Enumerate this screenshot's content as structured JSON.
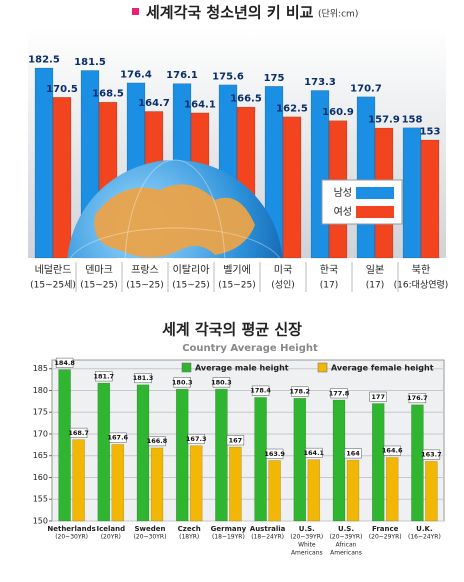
{
  "chart_data": [
    {
      "type": "bar",
      "title": "세계각국 청소년의 키 비교",
      "unit": "(단위:cm)",
      "categories": [
        [
          "네덜란드",
          "(15~25세)"
        ],
        [
          "덴마크",
          "(15~25)"
        ],
        [
          "프랑스",
          "(15~25)"
        ],
        [
          "이탈리아",
          "(15~25)"
        ],
        [
          "벨기에",
          "(15~25)"
        ],
        [
          "미국",
          "(성인)"
        ],
        [
          "한국",
          "(17)"
        ],
        [
          "일본",
          "(17)"
        ],
        [
          "북한",
          "(16:대상연령)"
        ]
      ],
      "series": [
        {
          "name": "남성",
          "color": "#1a8fe3",
          "values": [
            182.5,
            181.5,
            176.4,
            176.1,
            175.6,
            175,
            173.3,
            170.7,
            158
          ]
        },
        {
          "name": "여성",
          "color": "#f2441f",
          "values": [
            170.5,
            168.5,
            164.7,
            164.1,
            166.5,
            162.5,
            160.9,
            157.9,
            153
          ]
        }
      ]
    },
    {
      "type": "bar",
      "title": "세계 각국의 평균 신장",
      "subtitle": "Country Average Height",
      "categories": [
        [
          "Netherlands",
          "(20~30YR)"
        ],
        [
          "Iceland",
          "(20YR)"
        ],
        [
          "Sweden",
          "(20~30YR)"
        ],
        [
          "Czech",
          "(18YR)"
        ],
        [
          "Germany",
          "(18~19YR)"
        ],
        [
          "Australia",
          "(18~24YR)"
        ],
        [
          "U.S.",
          "(20~39YR)",
          "White",
          "Americans"
        ],
        [
          "U.S.",
          "(20~39YR)",
          "African",
          "Americans"
        ],
        [
          "France",
          "(20~29YR)"
        ],
        [
          "U.K.",
          "(16~24YR)"
        ]
      ],
      "series": [
        {
          "name": "Average male height",
          "color": "#2fb52f",
          "values": [
            184.8,
            181.7,
            181.3,
            180.3,
            180.3,
            178.4,
            178.2,
            177.8,
            177,
            176.7
          ]
        },
        {
          "name": "Average female height",
          "color": "#f2b705",
          "values": [
            168.7,
            167.6,
            166.8,
            167.3,
            167,
            163.9,
            164.1,
            164,
            164.6,
            163.7
          ]
        }
      ],
      "ylim": [
        150,
        187
      ],
      "yticks": [
        150,
        155,
        160,
        165,
        170,
        175,
        180,
        185
      ],
      "grid": true
    }
  ]
}
